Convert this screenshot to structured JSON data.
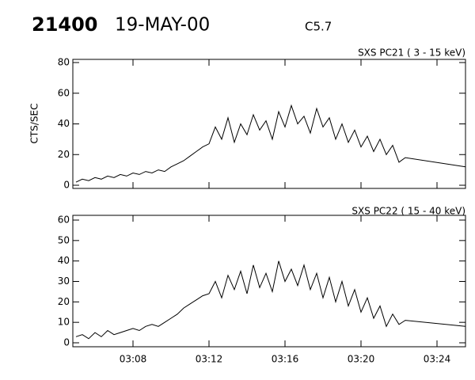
{
  "header": {
    "id": "21400",
    "date": "19-MAY-00",
    "class": "C5.7"
  },
  "chart_data": [
    {
      "type": "line",
      "title": "SXS PC21  (  3 - 15 keV)",
      "ylabel": "CTS/SEC",
      "color": "#000000",
      "x": [
        "03:05:00",
        "03:05:20",
        "03:05:40",
        "03:06:00",
        "03:06:20",
        "03:06:40",
        "03:07:00",
        "03:07:20",
        "03:07:40",
        "03:08:00",
        "03:08:20",
        "03:08:40",
        "03:09:00",
        "03:09:20",
        "03:09:40",
        "03:10:00",
        "03:10:20",
        "03:10:40",
        "03:11:00",
        "03:11:20",
        "03:11:40",
        "03:12:00",
        "03:12:20",
        "03:12:40",
        "03:13:00",
        "03:13:20",
        "03:13:40",
        "03:14:00",
        "03:14:20",
        "03:14:40",
        "03:15:00",
        "03:15:20",
        "03:15:40",
        "03:16:00",
        "03:16:20",
        "03:16:40",
        "03:17:00",
        "03:17:20",
        "03:17:40",
        "03:18:00",
        "03:18:20",
        "03:18:40",
        "03:19:00",
        "03:19:20",
        "03:19:40",
        "03:20:00",
        "03:20:20",
        "03:20:40",
        "03:21:00",
        "03:21:20",
        "03:21:40",
        "03:22:00",
        "03:22:20",
        "03:25:30"
      ],
      "values": [
        2,
        4,
        3,
        5,
        4,
        6,
        5,
        7,
        6,
        8,
        7,
        9,
        8,
        10,
        9,
        12,
        14,
        16,
        19,
        22,
        25,
        27,
        38,
        30,
        44,
        28,
        40,
        33,
        46,
        36,
        42,
        30,
        48,
        38,
        52,
        40,
        45,
        34,
        50,
        38,
        44,
        30,
        40,
        28,
        36,
        25,
        32,
        22,
        30,
        20,
        26,
        15,
        18,
        12
      ],
      "xlim": [
        "03:04:50",
        "03:25:30"
      ],
      "ylim": [
        0,
        80
      ],
      "yticks": [
        0,
        20,
        40,
        60,
        80
      ]
    },
    {
      "type": "line",
      "title": "SXS PC22  ( 15 - 40 keV)",
      "color": "#000000",
      "x": [
        "03:05:00",
        "03:05:20",
        "03:05:40",
        "03:06:00",
        "03:06:20",
        "03:06:40",
        "03:07:00",
        "03:07:20",
        "03:07:40",
        "03:08:00",
        "03:08:20",
        "03:08:40",
        "03:09:00",
        "03:09:20",
        "03:09:40",
        "03:10:00",
        "03:10:20",
        "03:10:40",
        "03:11:00",
        "03:11:20",
        "03:11:40",
        "03:12:00",
        "03:12:20",
        "03:12:40",
        "03:13:00",
        "03:13:20",
        "03:13:40",
        "03:14:00",
        "03:14:20",
        "03:14:40",
        "03:15:00",
        "03:15:20",
        "03:15:40",
        "03:16:00",
        "03:16:20",
        "03:16:40",
        "03:17:00",
        "03:17:20",
        "03:17:40",
        "03:18:00",
        "03:18:20",
        "03:18:40",
        "03:19:00",
        "03:19:20",
        "03:19:40",
        "03:20:00",
        "03:20:20",
        "03:20:40",
        "03:21:00",
        "03:21:20",
        "03:21:40",
        "03:22:00",
        "03:22:20",
        "03:25:30"
      ],
      "values": [
        3,
        4,
        2,
        5,
        3,
        6,
        4,
        5,
        6,
        7,
        6,
        8,
        9,
        8,
        10,
        12,
        14,
        17,
        19,
        21,
        23,
        24,
        30,
        22,
        33,
        26,
        35,
        24,
        38,
        27,
        34,
        25,
        40,
        30,
        36,
        28,
        38,
        26,
        34,
        22,
        32,
        20,
        30,
        18,
        26,
        15,
        22,
        12,
        18,
        8,
        14,
        9,
        11,
        8
      ],
      "xlim": [
        "03:04:50",
        "03:25:30"
      ],
      "ylim": [
        0,
        60
      ],
      "yticks": [
        0,
        10,
        20,
        30,
        40,
        50,
        60
      ],
      "xticks": [
        "03:08",
        "03:12",
        "03:16",
        "03:20",
        "03:24"
      ]
    }
  ]
}
